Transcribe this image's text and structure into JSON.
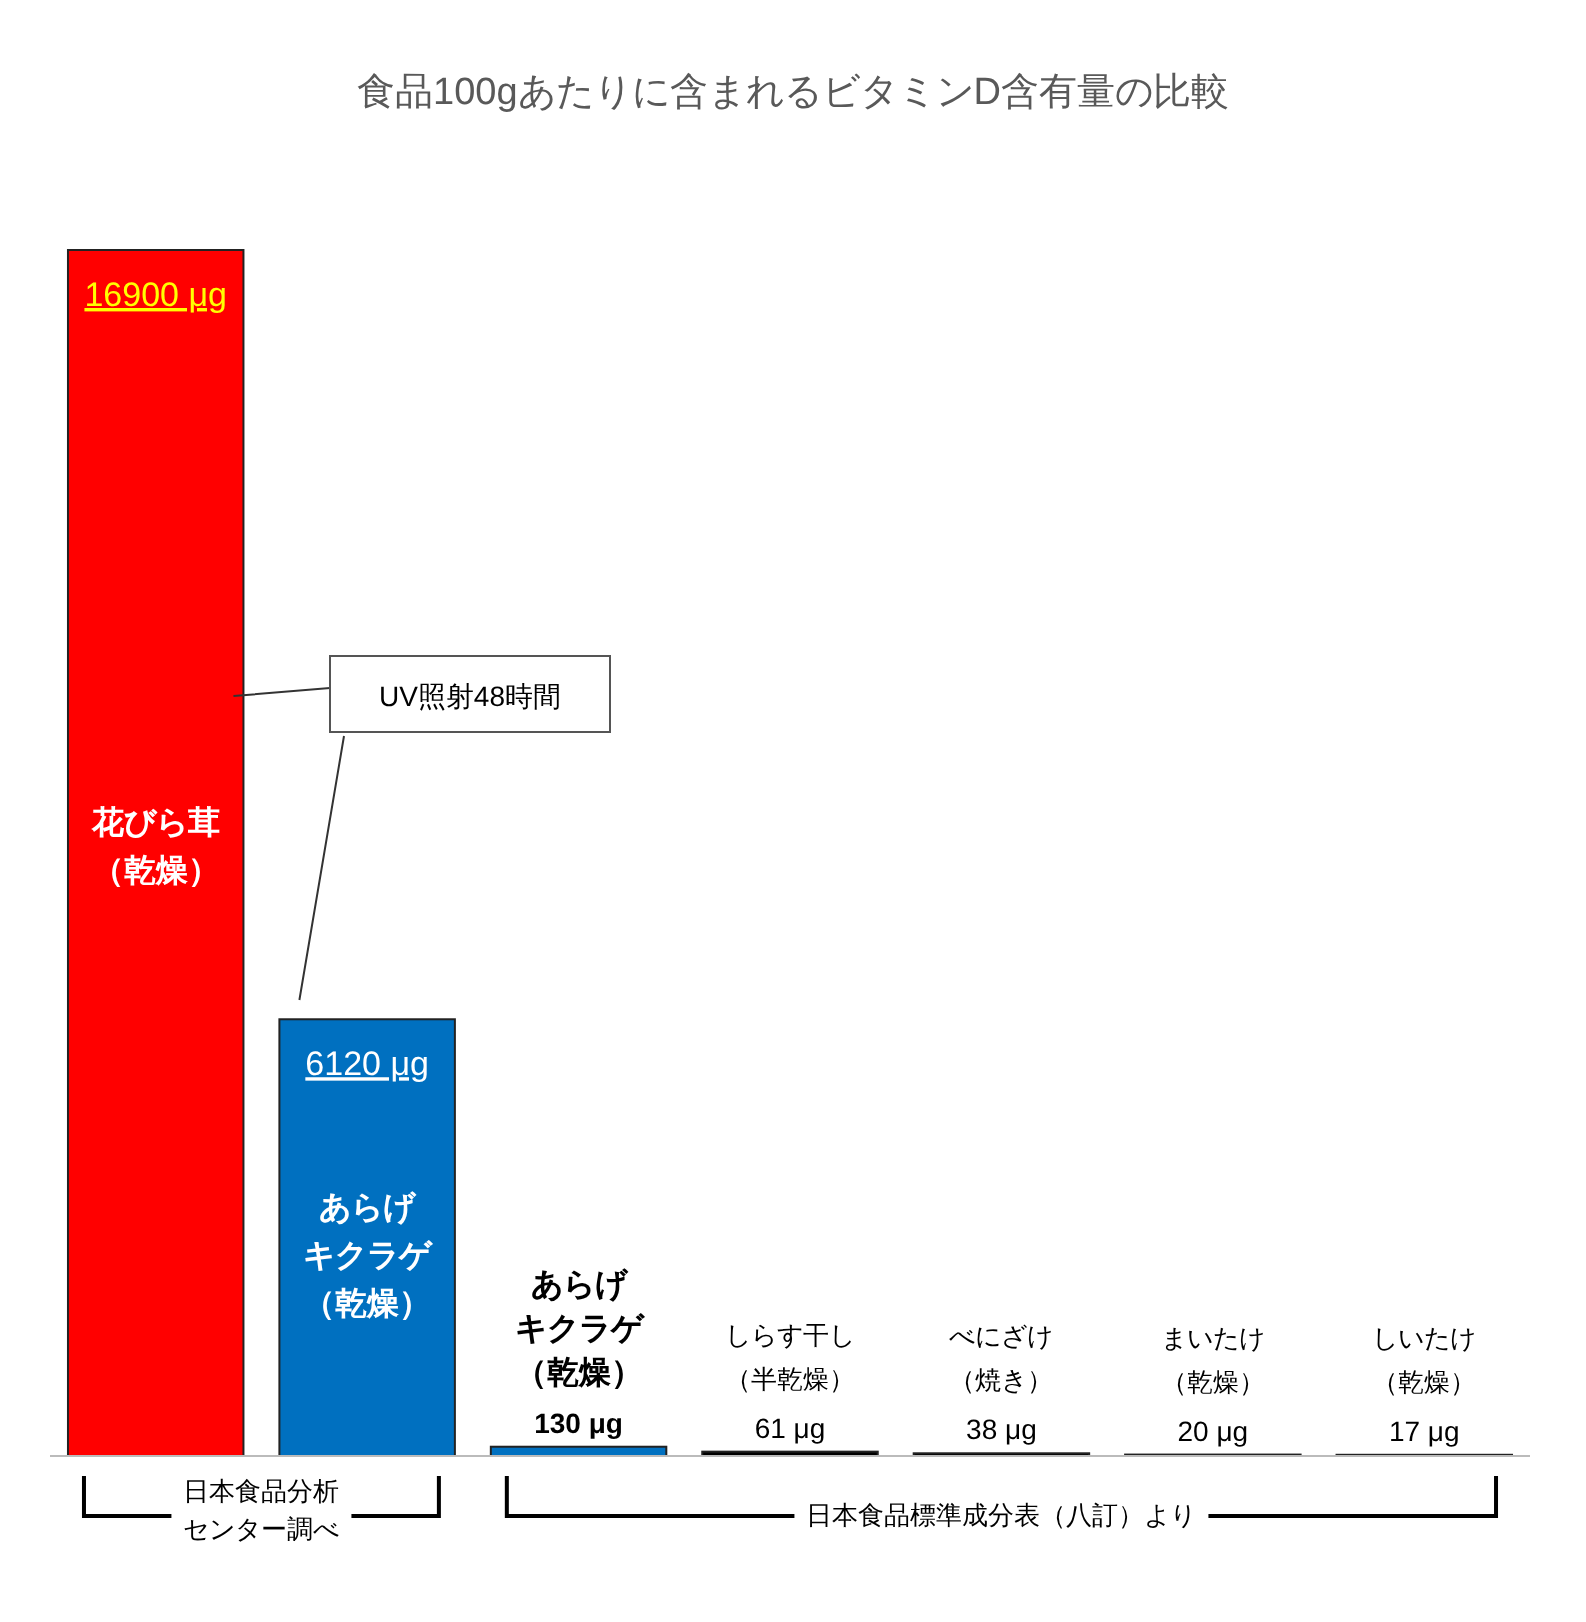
{
  "chart_data": {
    "type": "bar",
    "title": "食品100gあたりに含まれるビタミンD含有量の比較",
    "categories": [
      "花びら茸（乾燥）",
      "あらげキクラゲ（乾燥）",
      "あらげキクラゲ（乾燥）",
      "しらす干し（半乾燥）",
      "べにざけ（焼き）",
      "まいたけ（乾燥）",
      "しいたけ（乾燥）"
    ],
    "values": [
      16900,
      6120,
      130,
      61,
      38,
      20,
      17
    ],
    "colors": [
      "#ff0000",
      "#0070c0",
      "#0070c0",
      "#000000",
      "#000000",
      "#000000",
      "#000000"
    ],
    "value_labels": [
      "16900 μg",
      "6120 μg",
      "130 μg",
      "61 μg",
      "38 μg",
      "20 μg",
      "17 μg"
    ],
    "annotations": [
      "UV照射48時間",
      "日本食品分析センター調べ",
      "日本食品標準成分表（八訂）より"
    ],
    "grid": false
  }
}
